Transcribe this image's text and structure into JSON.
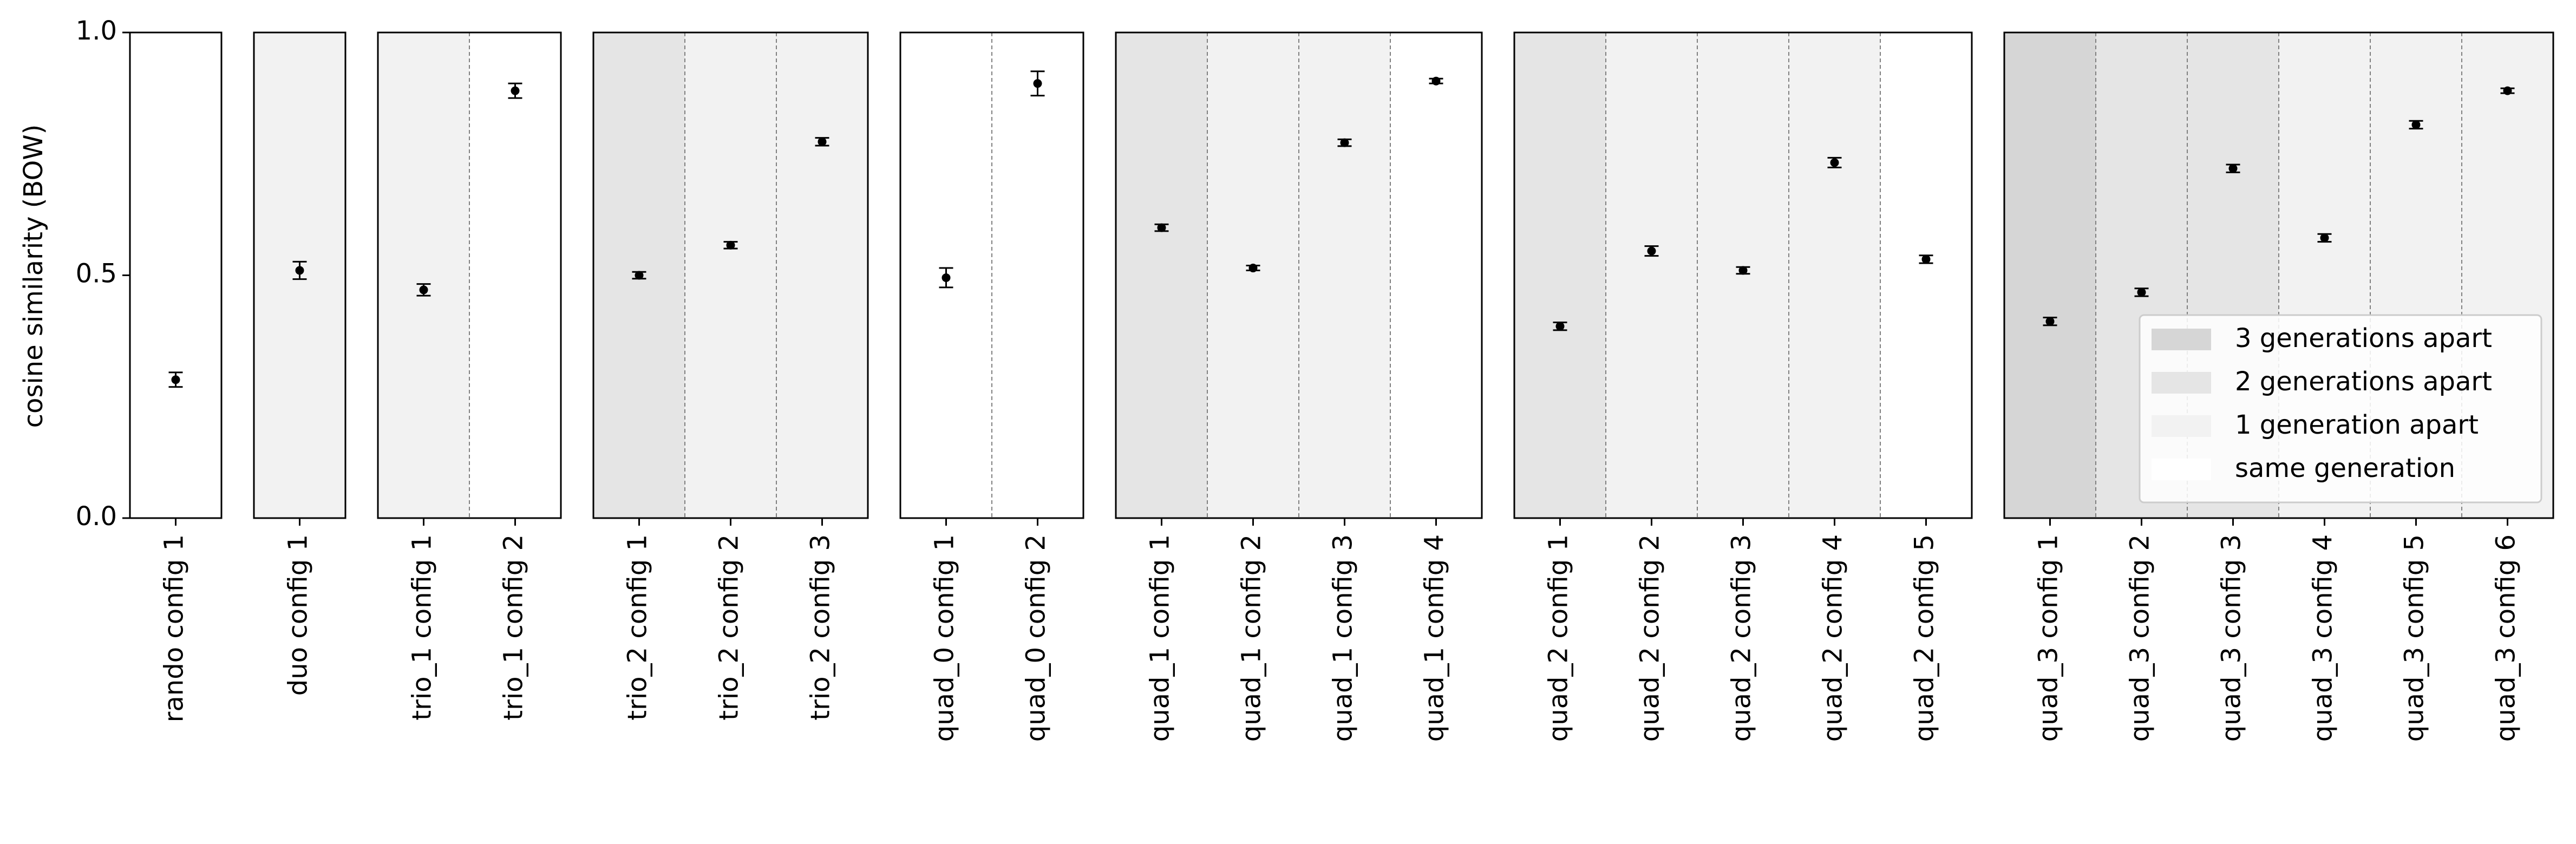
{
  "chart_data": {
    "type": "scatter",
    "ylabel": "cosine similarity (BOW)",
    "ylim": [
      0,
      1
    ],
    "yticks": [
      "0.0",
      "0.5",
      "1.0"
    ],
    "legend": {
      "placement": "lower-right of last panel",
      "entries": [
        {
          "label": "3 generations apart",
          "color": "#d6d6d6"
        },
        {
          "label": "2 generations apart",
          "color": "#e5e5e5"
        },
        {
          "label": "1 generation apart",
          "color": "#f2f2f2"
        },
        {
          "label": "same generation",
          "color": "#ffffff"
        }
      ]
    },
    "panels": [
      {
        "configs": [
          {
            "label": "rando config 1",
            "value": 0.285,
            "err": 0.015,
            "gen": 0
          }
        ]
      },
      {
        "configs": [
          {
            "label": "duo config 1",
            "value": 0.51,
            "err": 0.018,
            "gen": 1
          }
        ]
      },
      {
        "configs": [
          {
            "label": "trio_1 config 1",
            "value": 0.47,
            "err": 0.012,
            "gen": 1
          },
          {
            "label": "trio_1 config 2",
            "value": 0.88,
            "err": 0.015,
            "gen": 0
          }
        ]
      },
      {
        "configs": [
          {
            "label": "trio_2 config 1",
            "value": 0.5,
            "err": 0.007,
            "gen": 2
          },
          {
            "label": "trio_2 config 2",
            "value": 0.562,
            "err": 0.007,
            "gen": 1
          },
          {
            "label": "trio_2 config 3",
            "value": 0.775,
            "err": 0.008,
            "gen": 1
          }
        ]
      },
      {
        "configs": [
          {
            "label": "quad_0 config 1",
            "value": 0.495,
            "err": 0.02,
            "gen": 0
          },
          {
            "label": "quad_0 config 2",
            "value": 0.895,
            "err": 0.025,
            "gen": 0
          }
        ]
      },
      {
        "configs": [
          {
            "label": "quad_1 config 1",
            "value": 0.598,
            "err": 0.007,
            "gen": 2
          },
          {
            "label": "quad_1 config 2",
            "value": 0.515,
            "err": 0.005,
            "gen": 1
          },
          {
            "label": "quad_1 config 3",
            "value": 0.773,
            "err": 0.007,
            "gen": 1
          },
          {
            "label": "quad_1 config 4",
            "value": 0.9,
            "err": 0.005,
            "gen": 0
          }
        ]
      },
      {
        "configs": [
          {
            "label": "quad_2 config 1",
            "value": 0.395,
            "err": 0.008,
            "gen": 2
          },
          {
            "label": "quad_2 config 2",
            "value": 0.55,
            "err": 0.01,
            "gen": 1
          },
          {
            "label": "quad_2 config 3",
            "value": 0.51,
            "err": 0.007,
            "gen": 1
          },
          {
            "label": "quad_2 config 4",
            "value": 0.732,
            "err": 0.01,
            "gen": 1
          },
          {
            "label": "quad_2 config 5",
            "value": 0.533,
            "err": 0.008,
            "gen": 0
          }
        ]
      },
      {
        "configs": [
          {
            "label": "quad_3 config 1",
            "value": 0.405,
            "err": 0.008,
            "gen": 3
          },
          {
            "label": "quad_3 config 2",
            "value": 0.465,
            "err": 0.008,
            "gen": 2
          },
          {
            "label": "quad_3 config 3",
            "value": 0.72,
            "err": 0.008,
            "gen": 2
          },
          {
            "label": "quad_3 config 4",
            "value": 0.577,
            "err": 0.008,
            "gen": 1
          },
          {
            "label": "quad_3 config 5",
            "value": 0.81,
            "err": 0.008,
            "gen": 1
          },
          {
            "label": "quad_3 config 6",
            "value": 0.88,
            "err": 0.005,
            "gen": 1
          }
        ]
      }
    ]
  }
}
